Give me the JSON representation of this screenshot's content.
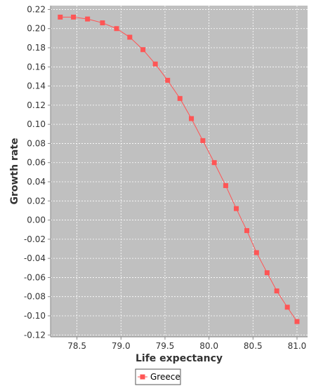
{
  "chart_data": {
    "type": "line",
    "title": "",
    "xlabel": "Life expectancy",
    "ylabel": "Growth rate",
    "xlim": [
      78.2,
      81.12
    ],
    "ylim": [
      -0.122,
      0.224
    ],
    "x_ticks": [
      78.5,
      79.0,
      79.5,
      80.0,
      80.5,
      81.0
    ],
    "x_tick_labels": [
      "78.5",
      "79.0",
      "79.5",
      "80.0",
      "80.5",
      "81.0"
    ],
    "y_ticks": [
      0.22,
      0.2,
      0.18,
      0.16,
      0.14,
      0.12,
      0.1,
      0.08,
      0.06,
      0.04,
      0.02,
      0.0,
      -0.02,
      -0.04,
      -0.06,
      -0.08,
      -0.1,
      -0.12
    ],
    "y_tick_labels": [
      "0.22",
      "0.20",
      "0.18",
      "0.16",
      "0.14",
      "0.12",
      "0.10",
      "0.08",
      "0.06",
      "0.04",
      "0.02",
      "0.00",
      "-0.02",
      "-0.04",
      "-0.06",
      "-0.08",
      "-0.10",
      "-0.12"
    ],
    "grid": true,
    "legend_position": "bottom",
    "series": [
      {
        "name": "Greece",
        "color": "#ff5555",
        "marker": "square",
        "x": [
          78.31,
          78.46,
          78.62,
          78.79,
          78.95,
          79.1,
          79.25,
          79.39,
          79.53,
          79.67,
          79.8,
          79.93,
          80.06,
          80.19,
          80.31,
          80.43,
          80.54,
          80.66,
          80.77,
          80.89,
          81.0
        ],
        "y": [
          0.212,
          0.212,
          0.21,
          0.206,
          0.2,
          0.191,
          0.178,
          0.163,
          0.146,
          0.127,
          0.106,
          0.083,
          0.06,
          0.036,
          0.012,
          -0.011,
          -0.034,
          -0.055,
          -0.074,
          -0.091,
          -0.106
        ]
      }
    ]
  },
  "legend": {
    "items": [
      {
        "label": "Greece",
        "color": "#ff5555"
      }
    ]
  }
}
